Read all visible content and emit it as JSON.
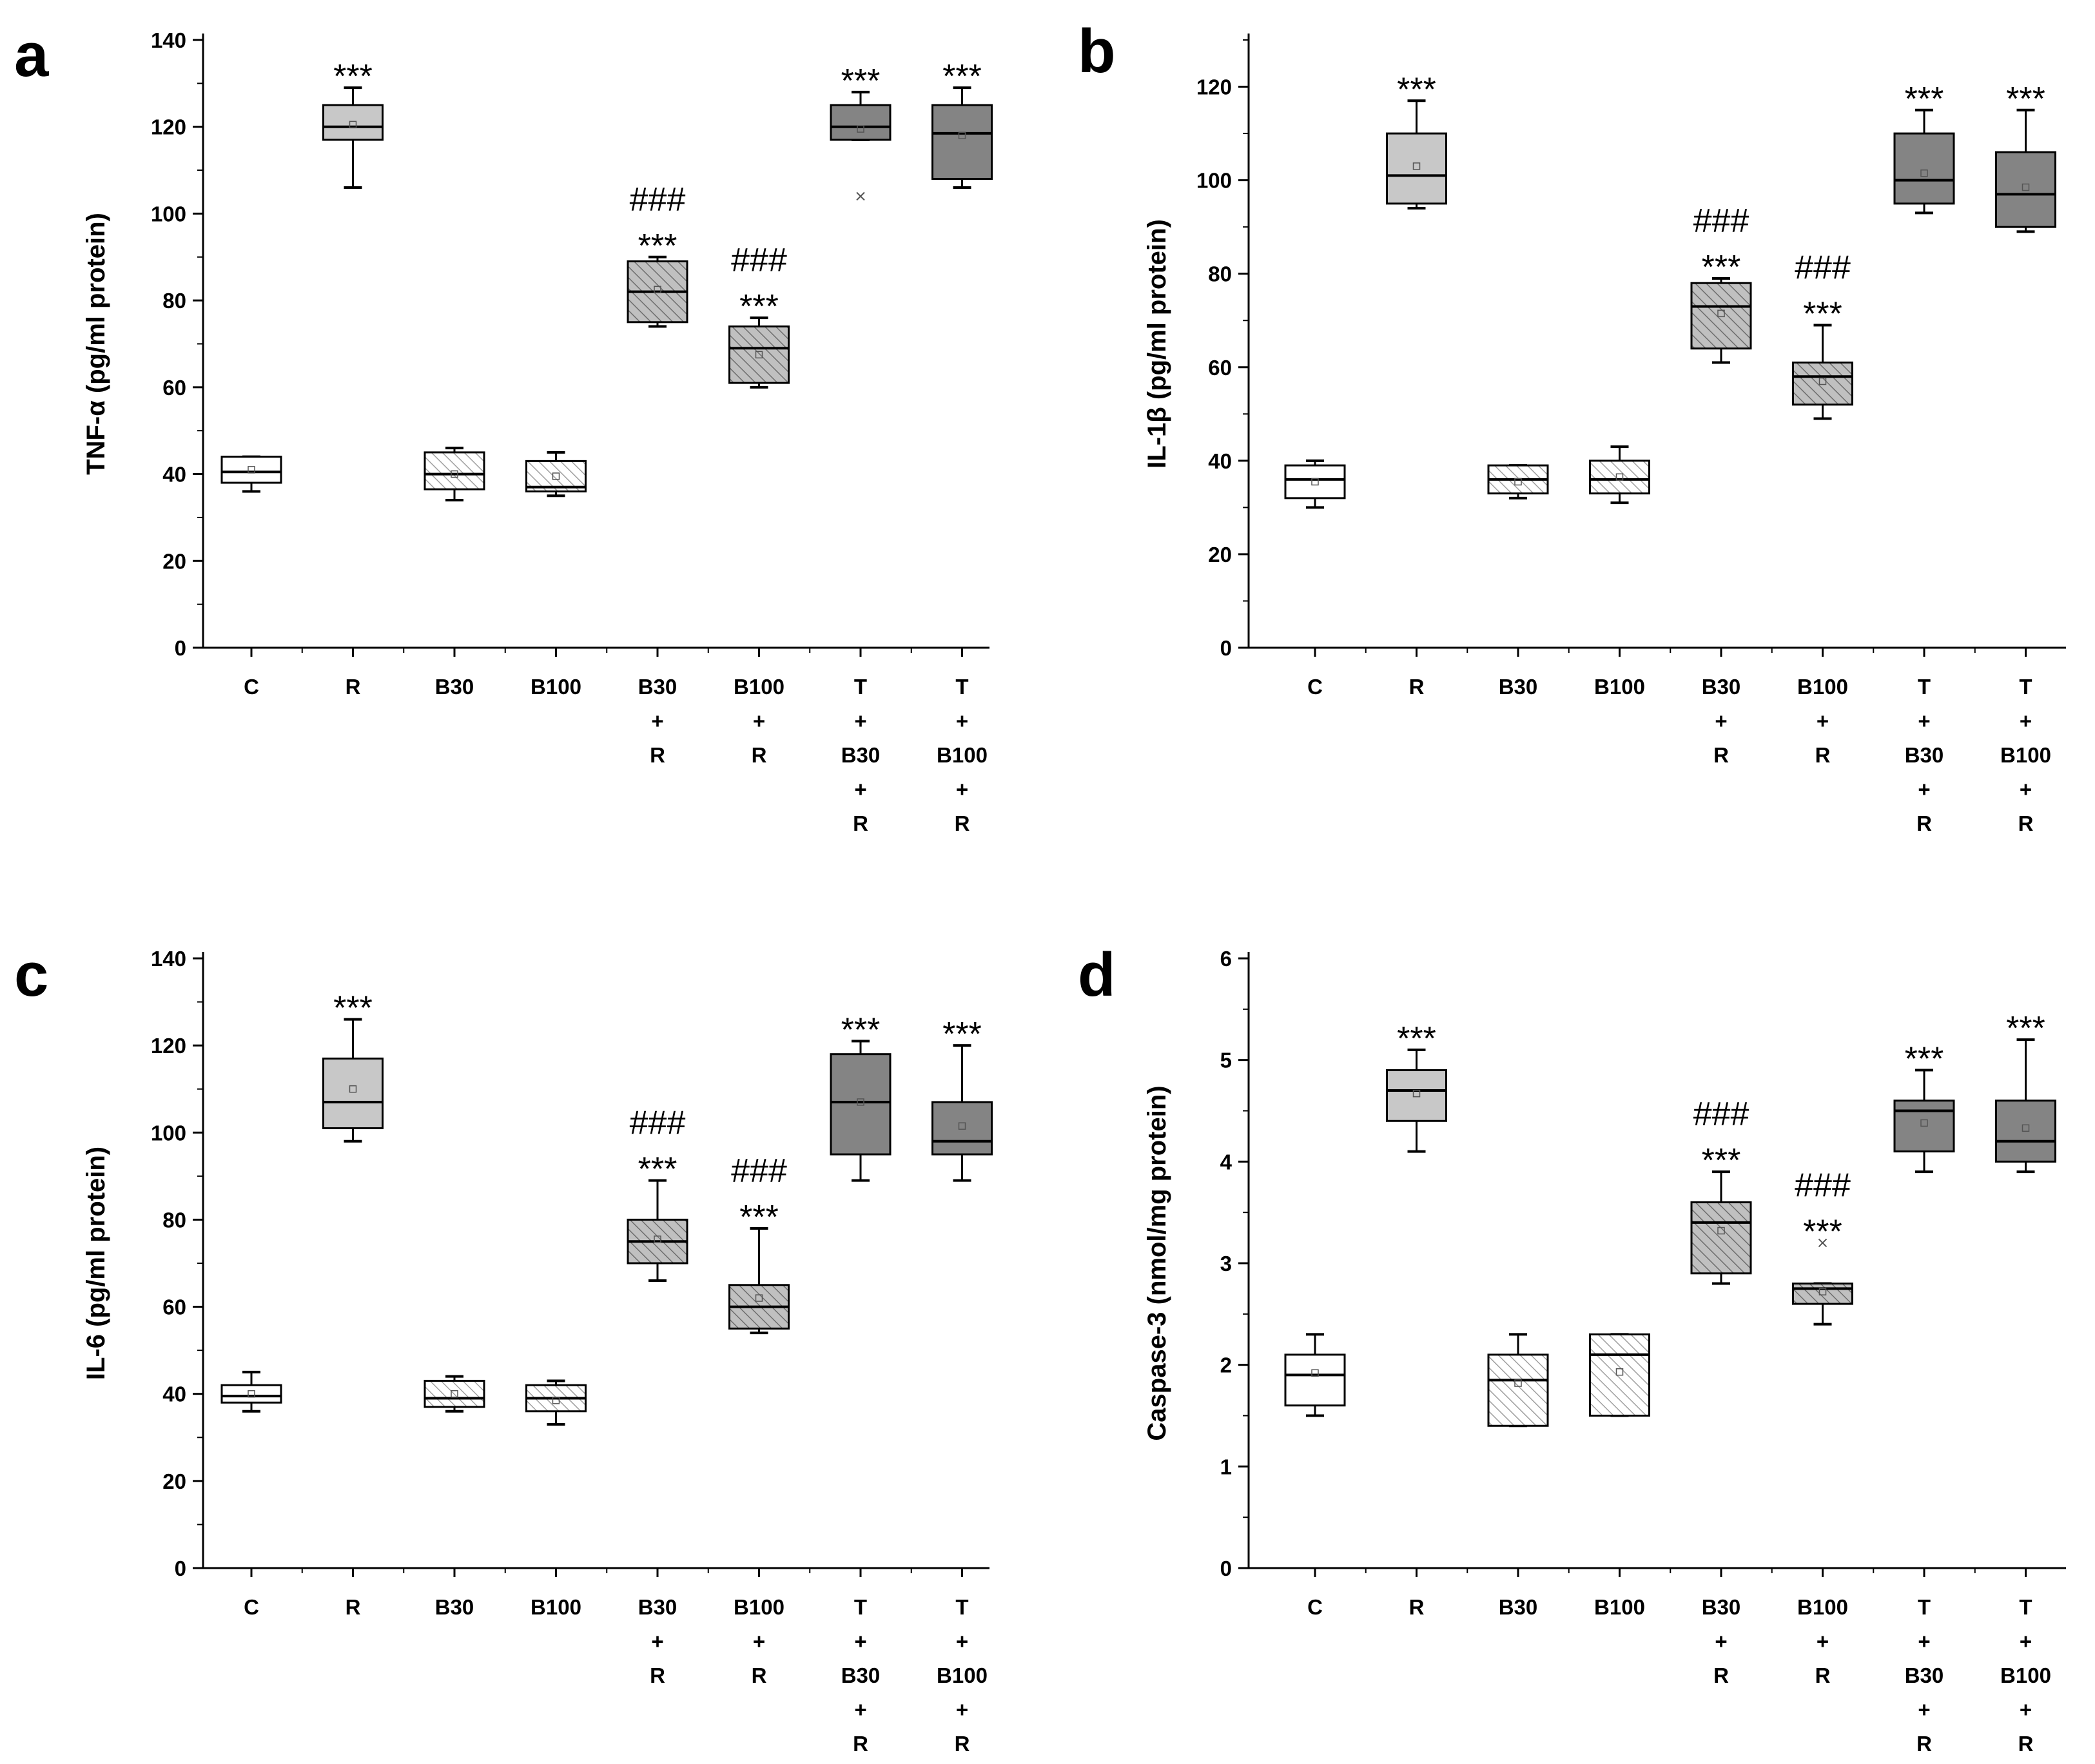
{
  "figure": {
    "categories_multiline": [
      [
        "C"
      ],
      [
        "R"
      ],
      [
        "B30"
      ],
      [
        "B100"
      ],
      [
        "B30",
        "+",
        "R"
      ],
      [
        "B100",
        "+",
        "R"
      ],
      [
        "T",
        "+",
        "B30",
        "+",
        "R"
      ],
      [
        "T",
        "+",
        "B100",
        "+",
        "R"
      ]
    ]
  },
  "colors": {
    "white_box": "#ffffff",
    "light_gray_box": "#c8c8c8",
    "hatch_light_bg": "#ffffff",
    "hatch_light_line": "#a0a0a0",
    "hatch_dark_bg": "#c0c0c0",
    "hatch_dark_line": "#6e6e6e",
    "dark_gray_box": "#848484",
    "stroke": "#000000"
  },
  "chart_data": [
    {
      "panel": "a",
      "type": "box",
      "ylabel": "TNF-α (pg/ml protein)",
      "ylim": [
        0,
        140
      ],
      "yticks": [
        0,
        20,
        40,
        60,
        80,
        100,
        120,
        140
      ],
      "categories": [
        "C",
        "R",
        "B30",
        "B100",
        "B30 + R",
        "B100 + R",
        "T + B30 + R",
        "T + B100 + R"
      ],
      "fills": [
        "white",
        "light",
        "hatch_light",
        "hatch_light",
        "hatch_dark",
        "hatch_dark",
        "dark",
        "dark"
      ],
      "boxes": [
        {
          "min": 36,
          "q1": 38,
          "median": 40.5,
          "q3": 44,
          "max": 44,
          "mean": 41,
          "outliers": []
        },
        {
          "min": 106,
          "q1": 117,
          "median": 120,
          "q3": 125,
          "max": 129,
          "mean": 120.5,
          "outliers": []
        },
        {
          "min": 34,
          "q1": 36.5,
          "median": 40,
          "q3": 45,
          "max": 46,
          "mean": 40,
          "outliers": []
        },
        {
          "min": 35,
          "q1": 36,
          "median": 37,
          "q3": 43,
          "max": 45,
          "mean": 39.5,
          "outliers": []
        },
        {
          "min": 74,
          "q1": 75,
          "median": 82,
          "q3": 89,
          "max": 90,
          "mean": 82.5,
          "outliers": []
        },
        {
          "min": 60,
          "q1": 61,
          "median": 69,
          "q3": 74,
          "max": 76,
          "mean": 67.5,
          "outliers": []
        },
        {
          "min": 117,
          "q1": 117,
          "median": 120,
          "q3": 125,
          "max": 128,
          "mean": 119.5,
          "outliers": [
            104
          ]
        },
        {
          "min": 106,
          "q1": 108,
          "median": 118.5,
          "q3": 125,
          "max": 129,
          "mean": 118,
          "outliers": []
        }
      ],
      "annotations": [
        {
          "cat": 1,
          "lines": [
            "***"
          ]
        },
        {
          "cat": 4,
          "lines": [
            "###",
            "***"
          ]
        },
        {
          "cat": 5,
          "lines": [
            "###",
            "***"
          ]
        },
        {
          "cat": 6,
          "lines": [
            "***"
          ]
        },
        {
          "cat": 7,
          "lines": [
            "***"
          ]
        }
      ]
    },
    {
      "panel": "b",
      "type": "box",
      "ylabel": "IL-1β (pg/ml protein)",
      "ylim": [
        0,
        130
      ],
      "yticks": [
        0,
        20,
        40,
        60,
        80,
        100,
        120
      ],
      "categories": [
        "C",
        "R",
        "B30",
        "B100",
        "B30 + R",
        "B100 + R",
        "T + B30 + R",
        "T + B100 + R"
      ],
      "fills": [
        "white",
        "light",
        "hatch_light",
        "hatch_light",
        "hatch_dark",
        "hatch_dark",
        "dark",
        "dark"
      ],
      "boxes": [
        {
          "min": 30,
          "q1": 32,
          "median": 36,
          "q3": 39,
          "max": 40,
          "mean": 35.5,
          "outliers": []
        },
        {
          "min": 94,
          "q1": 95,
          "median": 101,
          "q3": 110,
          "max": 117,
          "mean": 103,
          "outliers": []
        },
        {
          "min": 32,
          "q1": 33,
          "median": 36,
          "q3": 39,
          "max": 39,
          "mean": 35.5,
          "outliers": []
        },
        {
          "min": 31,
          "q1": 33,
          "median": 36,
          "q3": 40,
          "max": 43,
          "mean": 36.5,
          "outliers": []
        },
        {
          "min": 61,
          "q1": 64,
          "median": 73,
          "q3": 78,
          "max": 79,
          "mean": 71.5,
          "outliers": []
        },
        {
          "min": 49,
          "q1": 52,
          "median": 58,
          "q3": 61,
          "max": 69,
          "mean": 57,
          "outliers": []
        },
        {
          "min": 93,
          "q1": 95,
          "median": 100,
          "q3": 110,
          "max": 115,
          "mean": 101.5,
          "outliers": []
        },
        {
          "min": 89,
          "q1": 90,
          "median": 97,
          "q3": 106,
          "max": 115,
          "mean": 98.5,
          "outliers": []
        }
      ],
      "annotations": [
        {
          "cat": 1,
          "lines": [
            "***"
          ]
        },
        {
          "cat": 4,
          "lines": [
            "###",
            "***"
          ]
        },
        {
          "cat": 5,
          "lines": [
            "###",
            "***"
          ]
        },
        {
          "cat": 6,
          "lines": [
            "***"
          ]
        },
        {
          "cat": 7,
          "lines": [
            "***"
          ]
        }
      ]
    },
    {
      "panel": "c",
      "type": "box",
      "ylabel": "IL-6 (pg/ml protein)",
      "ylim": [
        0,
        140
      ],
      "yticks": [
        0,
        20,
        40,
        60,
        80,
        100,
        120,
        140
      ],
      "categories": [
        "C",
        "R",
        "B30",
        "B100",
        "B30 + R",
        "B100 + R",
        "T + B30 + R",
        "T + B100 + R"
      ],
      "fills": [
        "white",
        "light",
        "hatch_light",
        "hatch_light",
        "hatch_dark",
        "hatch_dark",
        "dark",
        "dark"
      ],
      "boxes": [
        {
          "min": 36,
          "q1": 38,
          "median": 39.5,
          "q3": 42,
          "max": 45,
          "mean": 40,
          "outliers": []
        },
        {
          "min": 98,
          "q1": 101,
          "median": 107,
          "q3": 117,
          "max": 126,
          "mean": 110,
          "outliers": []
        },
        {
          "min": 36,
          "q1": 37,
          "median": 39,
          "q3": 43,
          "max": 44,
          "mean": 40,
          "outliers": []
        },
        {
          "min": 33,
          "q1": 36,
          "median": 39,
          "q3": 42,
          "max": 43,
          "mean": 38.5,
          "outliers": []
        },
        {
          "min": 66,
          "q1": 70,
          "median": 75,
          "q3": 80,
          "max": 89,
          "mean": 75.5,
          "outliers": []
        },
        {
          "min": 54,
          "q1": 55,
          "median": 60,
          "q3": 65,
          "max": 78,
          "mean": 62,
          "outliers": []
        },
        {
          "min": 89,
          "q1": 95,
          "median": 107,
          "q3": 118,
          "max": 121,
          "mean": 107,
          "outliers": []
        },
        {
          "min": 89,
          "q1": 95,
          "median": 98,
          "q3": 107,
          "max": 120,
          "mean": 101.5,
          "outliers": []
        }
      ],
      "annotations": [
        {
          "cat": 1,
          "lines": [
            "***"
          ]
        },
        {
          "cat": 4,
          "lines": [
            "###",
            "***"
          ]
        },
        {
          "cat": 5,
          "lines": [
            "###",
            "***"
          ]
        },
        {
          "cat": 6,
          "lines": [
            "***"
          ]
        },
        {
          "cat": 7,
          "lines": [
            "***"
          ]
        }
      ]
    },
    {
      "panel": "d",
      "type": "box",
      "ylabel": "Caspase-3 (nmol/mg protein)",
      "ylim": [
        0,
        6
      ],
      "yticks": [
        0,
        1,
        2,
        3,
        4,
        5,
        6
      ],
      "categories": [
        "C",
        "R",
        "B30",
        "B100",
        "B30 + R",
        "B100 + R",
        "T + B30 + R",
        "T + B100 + R"
      ],
      "fills": [
        "white",
        "light",
        "hatch_light",
        "hatch_light",
        "hatch_dark",
        "hatch_dark",
        "dark",
        "dark"
      ],
      "boxes": [
        {
          "min": 1.5,
          "q1": 1.6,
          "median": 1.9,
          "q3": 2.1,
          "max": 2.3,
          "mean": 1.92,
          "outliers": []
        },
        {
          "min": 4.1,
          "q1": 4.4,
          "median": 4.7,
          "q3": 4.9,
          "max": 5.1,
          "mean": 4.67,
          "outliers": []
        },
        {
          "min": 1.4,
          "q1": 1.4,
          "median": 1.85,
          "q3": 2.1,
          "max": 2.3,
          "mean": 1.82,
          "outliers": []
        },
        {
          "min": 1.5,
          "q1": 1.5,
          "median": 2.1,
          "q3": 2.3,
          "max": 2.3,
          "mean": 1.93,
          "outliers": []
        },
        {
          "min": 2.8,
          "q1": 2.9,
          "median": 3.4,
          "q3": 3.6,
          "max": 3.9,
          "mean": 3.32,
          "outliers": []
        },
        {
          "min": 2.4,
          "q1": 2.6,
          "median": 2.75,
          "q3": 2.8,
          "max": 2.8,
          "mean": 2.72,
          "outliers": [
            3.2
          ]
        },
        {
          "min": 3.9,
          "q1": 4.1,
          "median": 4.5,
          "q3": 4.6,
          "max": 4.9,
          "mean": 4.38,
          "outliers": []
        },
        {
          "min": 3.9,
          "q1": 4.0,
          "median": 4.2,
          "q3": 4.6,
          "max": 5.2,
          "mean": 4.33,
          "outliers": []
        }
      ],
      "annotations": [
        {
          "cat": 1,
          "lines": [
            "***"
          ]
        },
        {
          "cat": 4,
          "lines": [
            "###",
            "***"
          ]
        },
        {
          "cat": 5,
          "lines": [
            "###",
            "***"
          ]
        },
        {
          "cat": 6,
          "lines": [
            "***"
          ]
        },
        {
          "cat": 7,
          "lines": [
            "***"
          ]
        }
      ]
    }
  ]
}
